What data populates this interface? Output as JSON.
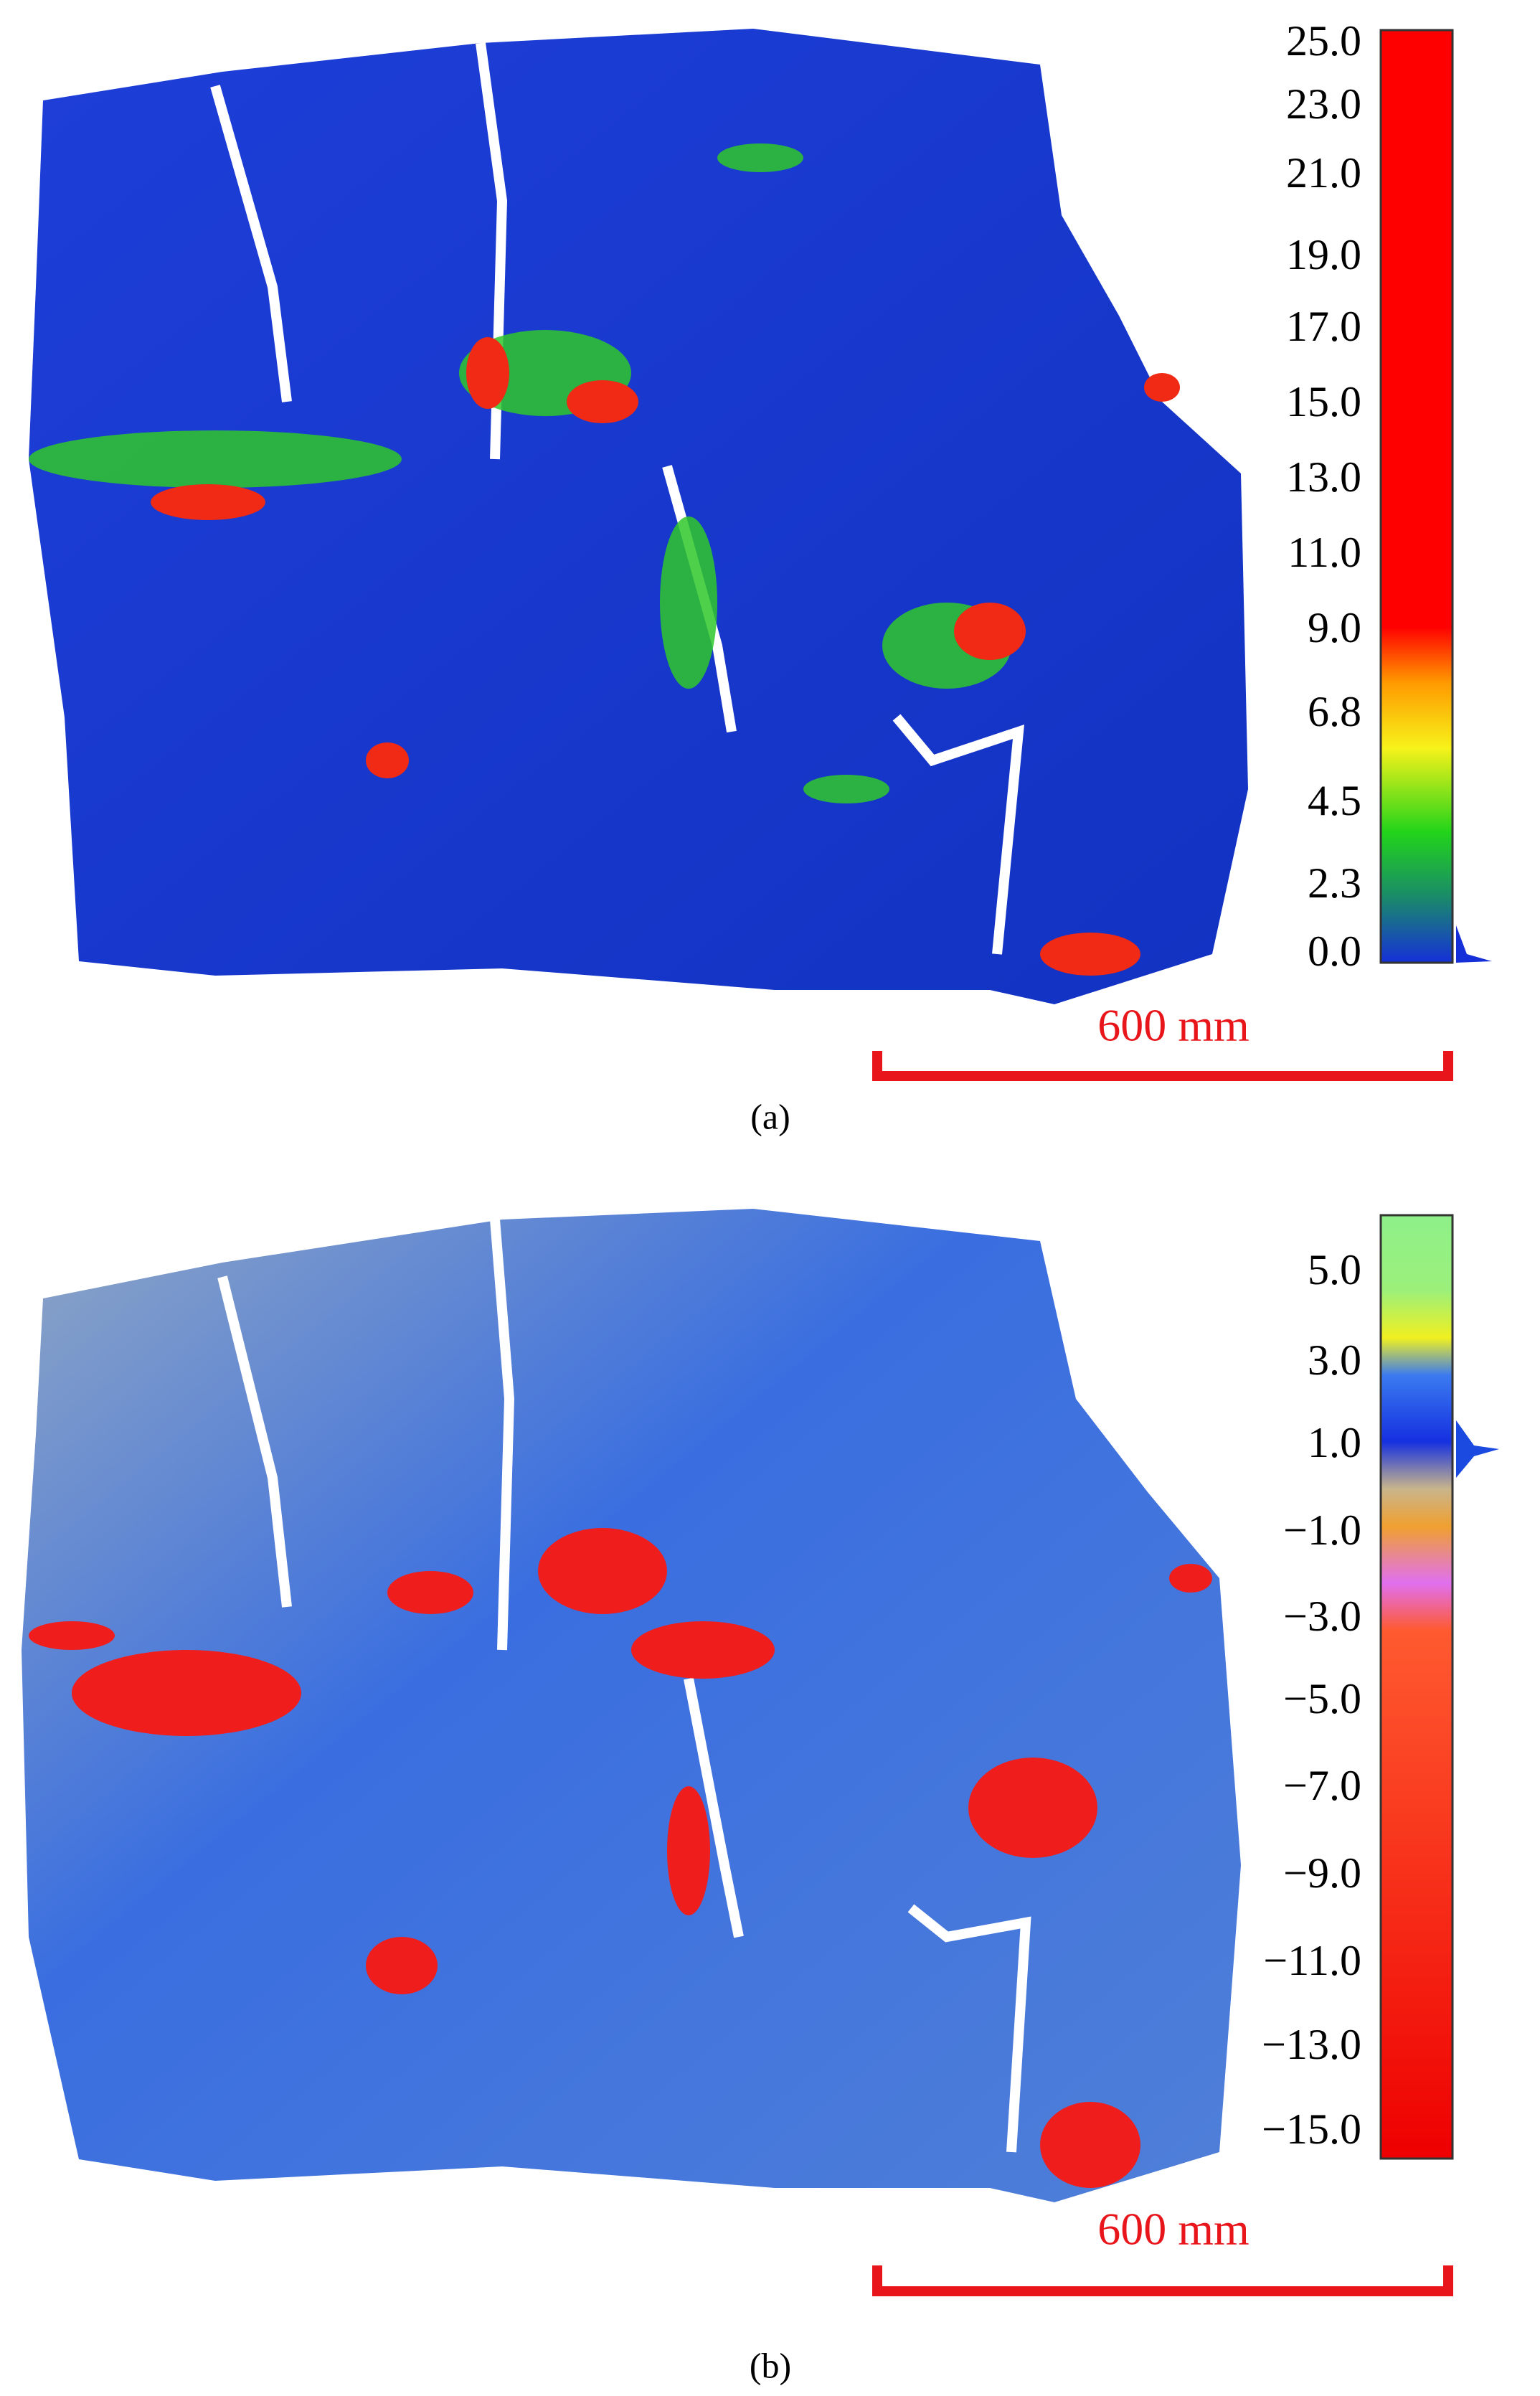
{
  "panels": [
    {
      "colorbar_labels": [
        "25.0",
        "23.0",
        "21.0",
        "19.0",
        "17.0",
        "15.0",
        "13.0",
        "11.0",
        "9.0",
        "6.8",
        "4.5",
        "2.3",
        "0.0"
      ],
      "scale_bar": "600 mm",
      "caption": "(a)"
    },
    {
      "colorbar_labels": [
        "5.0",
        "3.0",
        "1.0",
        "−1.0",
        "−3.0",
        "−5.0",
        "−7.0",
        "−9.0",
        "−11.0",
        "−13.0",
        "−15.0"
      ],
      "scale_bar": "600 mm",
      "caption": "(b)"
    }
  ]
}
